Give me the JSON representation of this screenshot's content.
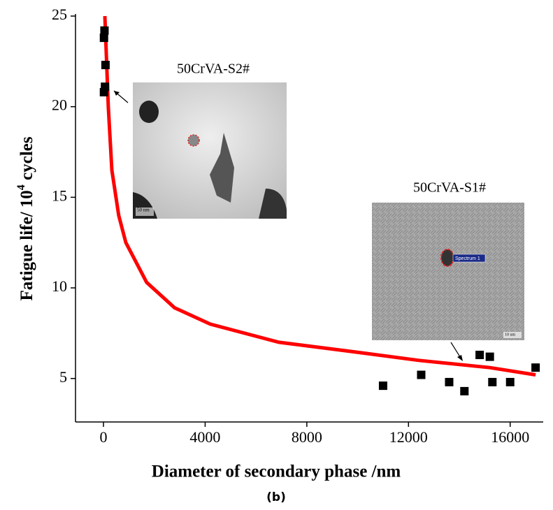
{
  "chart_data": {
    "type": "scatter",
    "xlabel": "Diameter of secondary phase /nm",
    "ylabel": {
      "text": "Fatigue life/ 10",
      "superscript": "4",
      "suffix": " cycles"
    },
    "caption": "(b)",
    "xlim": [
      -1100,
      17300
    ],
    "ylim": [
      2.6,
      25
    ],
    "xticks": [
      0,
      4000,
      8000,
      12000,
      16000
    ],
    "yticks": [
      5,
      10,
      15,
      20,
      25
    ],
    "scatter": {
      "color": "#000000",
      "x": [
        40,
        20,
        80,
        60,
        20,
        11000,
        12500,
        13600,
        14200,
        14800,
        15200,
        15300,
        16000,
        17000
      ],
      "values": [
        24.2,
        23.8,
        22.3,
        21.1,
        20.8,
        4.6,
        5.2,
        4.8,
        4.3,
        6.3,
        6.2,
        4.8,
        4.8,
        5.6
      ]
    },
    "fit": {
      "color": "#ff0000",
      "x": [
        55,
        190,
        330,
        600,
        880,
        1700,
        2800,
        4200,
        6900,
        9700,
        12400,
        15200,
        17000
      ],
      "values": [
        25,
        20,
        16.5,
        14,
        12.5,
        10.3,
        8.9,
        8.0,
        7.0,
        6.5,
        6.0,
        5.6,
        5.2
      ]
    },
    "insets": [
      {
        "label": "50CrVA-S2#",
        "scale": "50  nm"
      },
      {
        "label": "50CrVA-S1#",
        "scale": "10 um",
        "marker": "Spectrum 1"
      }
    ]
  }
}
